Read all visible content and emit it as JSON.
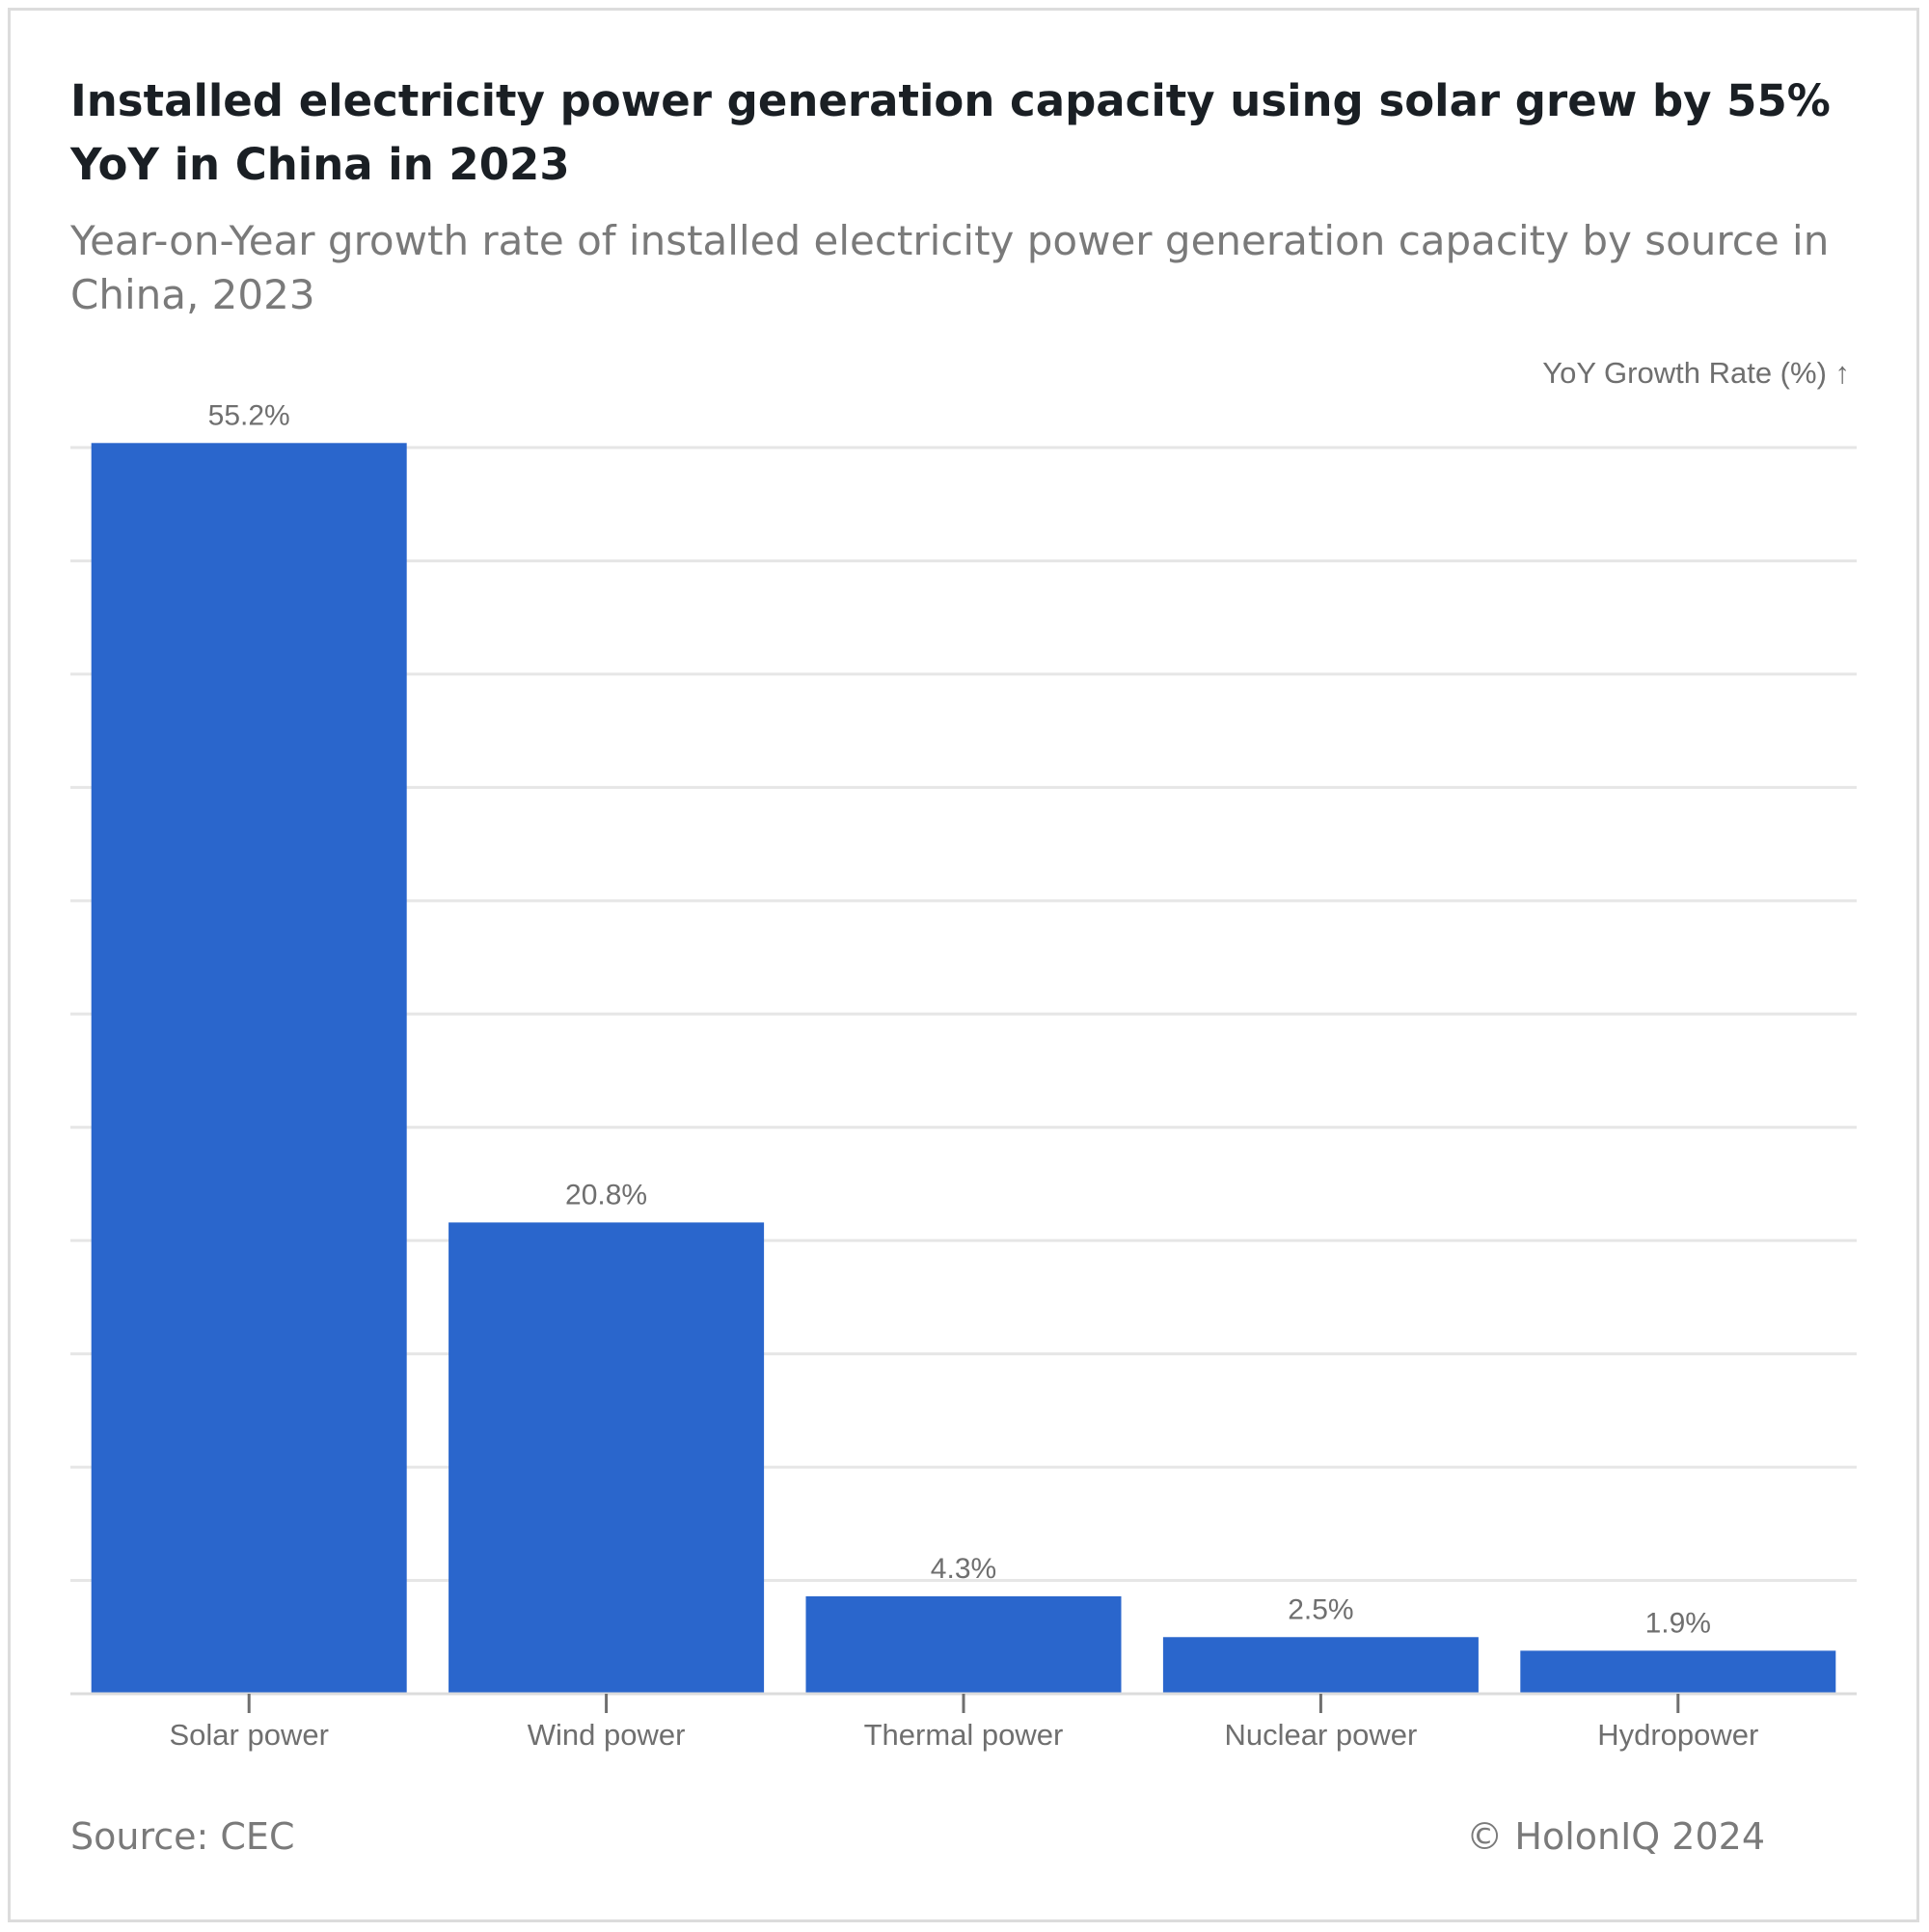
{
  "title": "Installed electricity power generation capacity using solar grew by 55% YoY in China in 2023",
  "subtitle": "Year-on-Year growth rate of installed electricity power generation capacity by source in China, 2023",
  "source": "Source: CEC",
  "copyright": "© HolonIQ 2024",
  "colors": {
    "bar": "#2a66cc",
    "grid": "#e6e6e6",
    "text": "#6f6f6f"
  },
  "chart_data": {
    "type": "bar",
    "categories": [
      "Solar power",
      "Wind power",
      "Thermal power",
      "Nuclear power",
      "Hydropower"
    ],
    "values": [
      55.2,
      20.8,
      4.3,
      2.5,
      1.9
    ],
    "value_labels": [
      "55.2%",
      "20.8%",
      "4.3%",
      "2.5%",
      "1.9%"
    ],
    "title": "Installed electricity power generation capacity using solar grew by 55% YoY in China in 2023",
    "subtitle": "Year-on-Year growth rate of installed electricity power generation capacity by source in China, 2023",
    "xlabel": "",
    "ylabel": "YoY Growth Rate (%) ↑",
    "ylim": [
      0,
      55
    ],
    "grid_step": 5,
    "grid": true,
    "legend": "none"
  }
}
